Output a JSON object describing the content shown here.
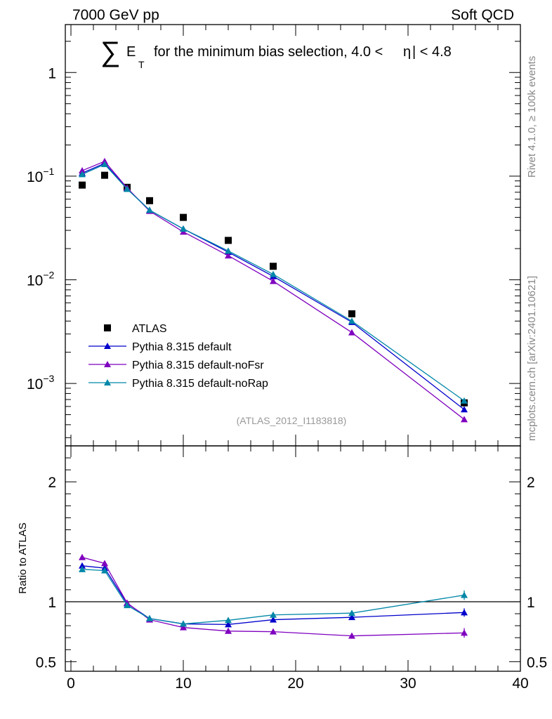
{
  "header": {
    "left": "7000 GeV pp",
    "right": "Soft QCD"
  },
  "side_labels": {
    "rivet": "Rivet 4.1.0, ≥ 100k events",
    "mcplots": "mcplots.cern.ch [arXiv:2401.10621]"
  },
  "chart_data": [
    {
      "type": "line",
      "panel": "main",
      "title_sum_symbol": "∑",
      "title_var": "E",
      "title_sub": "T",
      "title": "for the minimum bias selection, 4.0 <",
      "title_eta": "η",
      "title_end": "| < 4.8",
      "analysis_id": "(ATLAS_2012_I1183818)",
      "yscale": "log",
      "xlim": [
        -0.5,
        40
      ],
      "ylim": [
        0.00025,
        2.9
      ],
      "ytick_values": [
        0.001,
        0.01,
        0.1,
        1
      ],
      "ytick_labels": [
        {
          "base": "10",
          "exp": "−3"
        },
        {
          "base": "10",
          "exp": "−2"
        },
        {
          "base": "10",
          "exp": "−1"
        },
        {
          "base": "1",
          "exp": ""
        }
      ],
      "legend_position": "lower-left",
      "series": [
        {
          "name": "ATLAS",
          "color": "#000000",
          "marker": "square",
          "line": false,
          "x": [
            1,
            3,
            5,
            7,
            10,
            14,
            18,
            25,
            35
          ],
          "y": [
            0.082,
            0.102,
            0.078,
            0.058,
            0.04,
            0.024,
            0.0135,
            0.0047,
            0.00065
          ]
        },
        {
          "name": "Pythia 8.315 default",
          "color": "#0000cc",
          "marker": "triangle",
          "line": true,
          "x": [
            1,
            3,
            5,
            7,
            10,
            14,
            18,
            25,
            35
          ],
          "y": [
            0.107,
            0.133,
            0.076,
            0.047,
            0.031,
            0.0185,
            0.0108,
            0.0039,
            0.00056
          ]
        },
        {
          "name": "Pythia 8.315 default-noFsr",
          "color": "#7f00bf",
          "marker": "triangle",
          "line": true,
          "x": [
            1,
            3,
            5,
            7,
            10,
            14,
            18,
            25,
            35
          ],
          "y": [
            0.113,
            0.139,
            0.077,
            0.046,
            0.029,
            0.0171,
            0.0097,
            0.0031,
            0.00045
          ]
        },
        {
          "name": "Pythia 8.315 default-noRap",
          "color": "#0087a8",
          "marker": "triangle",
          "line": true,
          "x": [
            1,
            3,
            5,
            7,
            10,
            14,
            18,
            25,
            35
          ],
          "y": [
            0.104,
            0.13,
            0.075,
            0.047,
            0.031,
            0.019,
            0.0113,
            0.004,
            0.00068
          ]
        }
      ]
    },
    {
      "type": "line",
      "panel": "ratio",
      "ylabel": "Ratio to ATLAS",
      "xlim": [
        -0.5,
        40
      ],
      "ylim": [
        0.42,
        2.3
      ],
      "reference_line": 1,
      "xtick_values": [
        0,
        10,
        20,
        30,
        40
      ],
      "xtick_labels": [
        "0",
        "10",
        "20",
        "30",
        "40"
      ],
      "ytick_values": [
        0.5,
        1,
        2
      ],
      "ytick_labels": [
        "0.5",
        "1",
        "2"
      ],
      "series": [
        {
          "name": "Pythia 8.315 default",
          "color": "#0000cc",
          "x": [
            1,
            3,
            5,
            7,
            10,
            14,
            18,
            25,
            35
          ],
          "y": [
            1.3,
            1.28,
            0.985,
            0.86,
            0.815,
            0.81,
            0.85,
            0.87,
            0.91
          ],
          "err": [
            0.01,
            0.01,
            0.01,
            0.01,
            0.01,
            0.01,
            0.01,
            0.015,
            0.035
          ]
        },
        {
          "name": "Pythia 8.315 default-noFsr",
          "color": "#7f00bf",
          "x": [
            1,
            3,
            5,
            7,
            10,
            14,
            18,
            25,
            35
          ],
          "y": [
            1.37,
            1.32,
            0.99,
            0.85,
            0.785,
            0.755,
            0.75,
            0.715,
            0.74
          ],
          "err": [
            0.01,
            0.01,
            0.01,
            0.01,
            0.01,
            0.01,
            0.01,
            0.015,
            0.04
          ]
        },
        {
          "name": "Pythia 8.315 default-noRap",
          "color": "#0087a8",
          "x": [
            1,
            3,
            5,
            7,
            10,
            14,
            18,
            25,
            35
          ],
          "y": [
            1.27,
            1.26,
            0.97,
            0.86,
            0.815,
            0.845,
            0.89,
            0.905,
            1.055
          ],
          "err": [
            0.01,
            0.01,
            0.01,
            0.01,
            0.01,
            0.01,
            0.01,
            0.015,
            0.04
          ]
        }
      ]
    }
  ]
}
